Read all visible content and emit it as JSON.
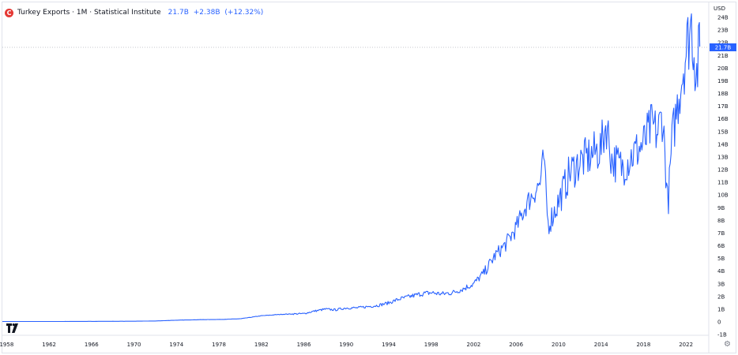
{
  "legend": {
    "logo_letter": "C",
    "title": "Turkey Exports · 1M · Statistical Institute",
    "last": "21.7B",
    "change": "+2.38B",
    "change_pct": "(+12.32%)"
  },
  "currency": "USD",
  "icons": {
    "settings": "gear-icon",
    "brand": "tradingview-logo-icon"
  },
  "colors": {
    "line": "#2962ff",
    "price_label_bg": "#2962ff",
    "grid": "#e6e8ee"
  },
  "chart_data": {
    "type": "line",
    "title": "Turkey Exports · 1M · Statistical Institute",
    "xlabel": "",
    "ylabel": "",
    "x_ticks": [
      "1958",
      "1962",
      "1966",
      "1970",
      "1974",
      "1978",
      "1982",
      "1986",
      "1990",
      "1994",
      "1998",
      "2002",
      "2006",
      "2010",
      "2014",
      "2018",
      "2022"
    ],
    "y_ticks": [
      "-1B",
      "0",
      "1B",
      "2B",
      "3B",
      "4B",
      "5B",
      "6B",
      "7B",
      "8B",
      "9B",
      "10B",
      "11B",
      "12B",
      "13B",
      "14B",
      "15B",
      "16B",
      "17B",
      "18B",
      "19B",
      "20B",
      "21B",
      "22B",
      "23B",
      "24B"
    ],
    "ylim": [
      -1,
      24
    ],
    "xlim": [
      1957.6,
      2024.0
    ],
    "last_value": 21.7,
    "last_value_label": "21.7B",
    "grid": false,
    "legend": "top-left",
    "series": [
      {
        "values": [
          [
            1957.6,
            0.03
          ],
          [
            1962,
            0.03
          ],
          [
            1966,
            0.04
          ],
          [
            1970,
            0.05
          ],
          [
            1972,
            0.07
          ],
          [
            1974,
            0.13
          ],
          [
            1976,
            0.17
          ],
          [
            1978,
            0.19
          ],
          [
            1980,
            0.24
          ],
          [
            1982,
            0.48
          ],
          [
            1984,
            0.6
          ],
          [
            1986,
            0.65
          ],
          [
            1987,
            0.85
          ],
          [
            1988,
            1.0
          ],
          [
            1989,
            0.95
          ],
          [
            1990,
            1.1
          ],
          [
            1991,
            1.1
          ],
          [
            1992,
            1.2
          ],
          [
            1993,
            1.3
          ],
          [
            1994,
            1.5
          ],
          [
            1995,
            1.8
          ],
          [
            1996,
            2.0
          ],
          [
            1997,
            2.2
          ],
          [
            1998,
            2.3
          ],
          [
            1999,
            2.2
          ],
          [
            2000,
            2.3
          ],
          [
            2001,
            2.6
          ],
          [
            2002,
            3.0
          ],
          [
            2003,
            3.9
          ],
          [
            2004,
            5.2
          ],
          [
            2005,
            6.1
          ],
          [
            2006,
            7.4
          ],
          [
            2007,
            9.3
          ],
          [
            2008.3,
            11.0
          ],
          [
            2008.6,
            13.0
          ],
          [
            2009.0,
            7.7
          ],
          [
            2009.5,
            8.5
          ],
          [
            2010,
            9.5
          ],
          [
            2010.5,
            10.5
          ],
          [
            2011,
            11.7
          ],
          [
            2012,
            12.6
          ],
          [
            2013,
            13.1
          ],
          [
            2014,
            13.7
          ],
          [
            2014.5,
            15.7
          ],
          [
            2015,
            12.8
          ],
          [
            2016,
            12.2
          ],
          [
            2017,
            13.2
          ],
          [
            2018,
            14.0
          ],
          [
            2018.8,
            15.5
          ],
          [
            2019.3,
            14.8
          ],
          [
            2019.8,
            16.4
          ],
          [
            2020.3,
            9.1
          ],
          [
            2020.7,
            14.4
          ],
          [
            2021,
            16.0
          ],
          [
            2021.5,
            18.8
          ],
          [
            2022,
            21.3
          ],
          [
            2022.5,
            23.6
          ],
          [
            2023,
            19.4
          ],
          [
            2023.3,
            21.7
          ]
        ]
      }
    ]
  }
}
